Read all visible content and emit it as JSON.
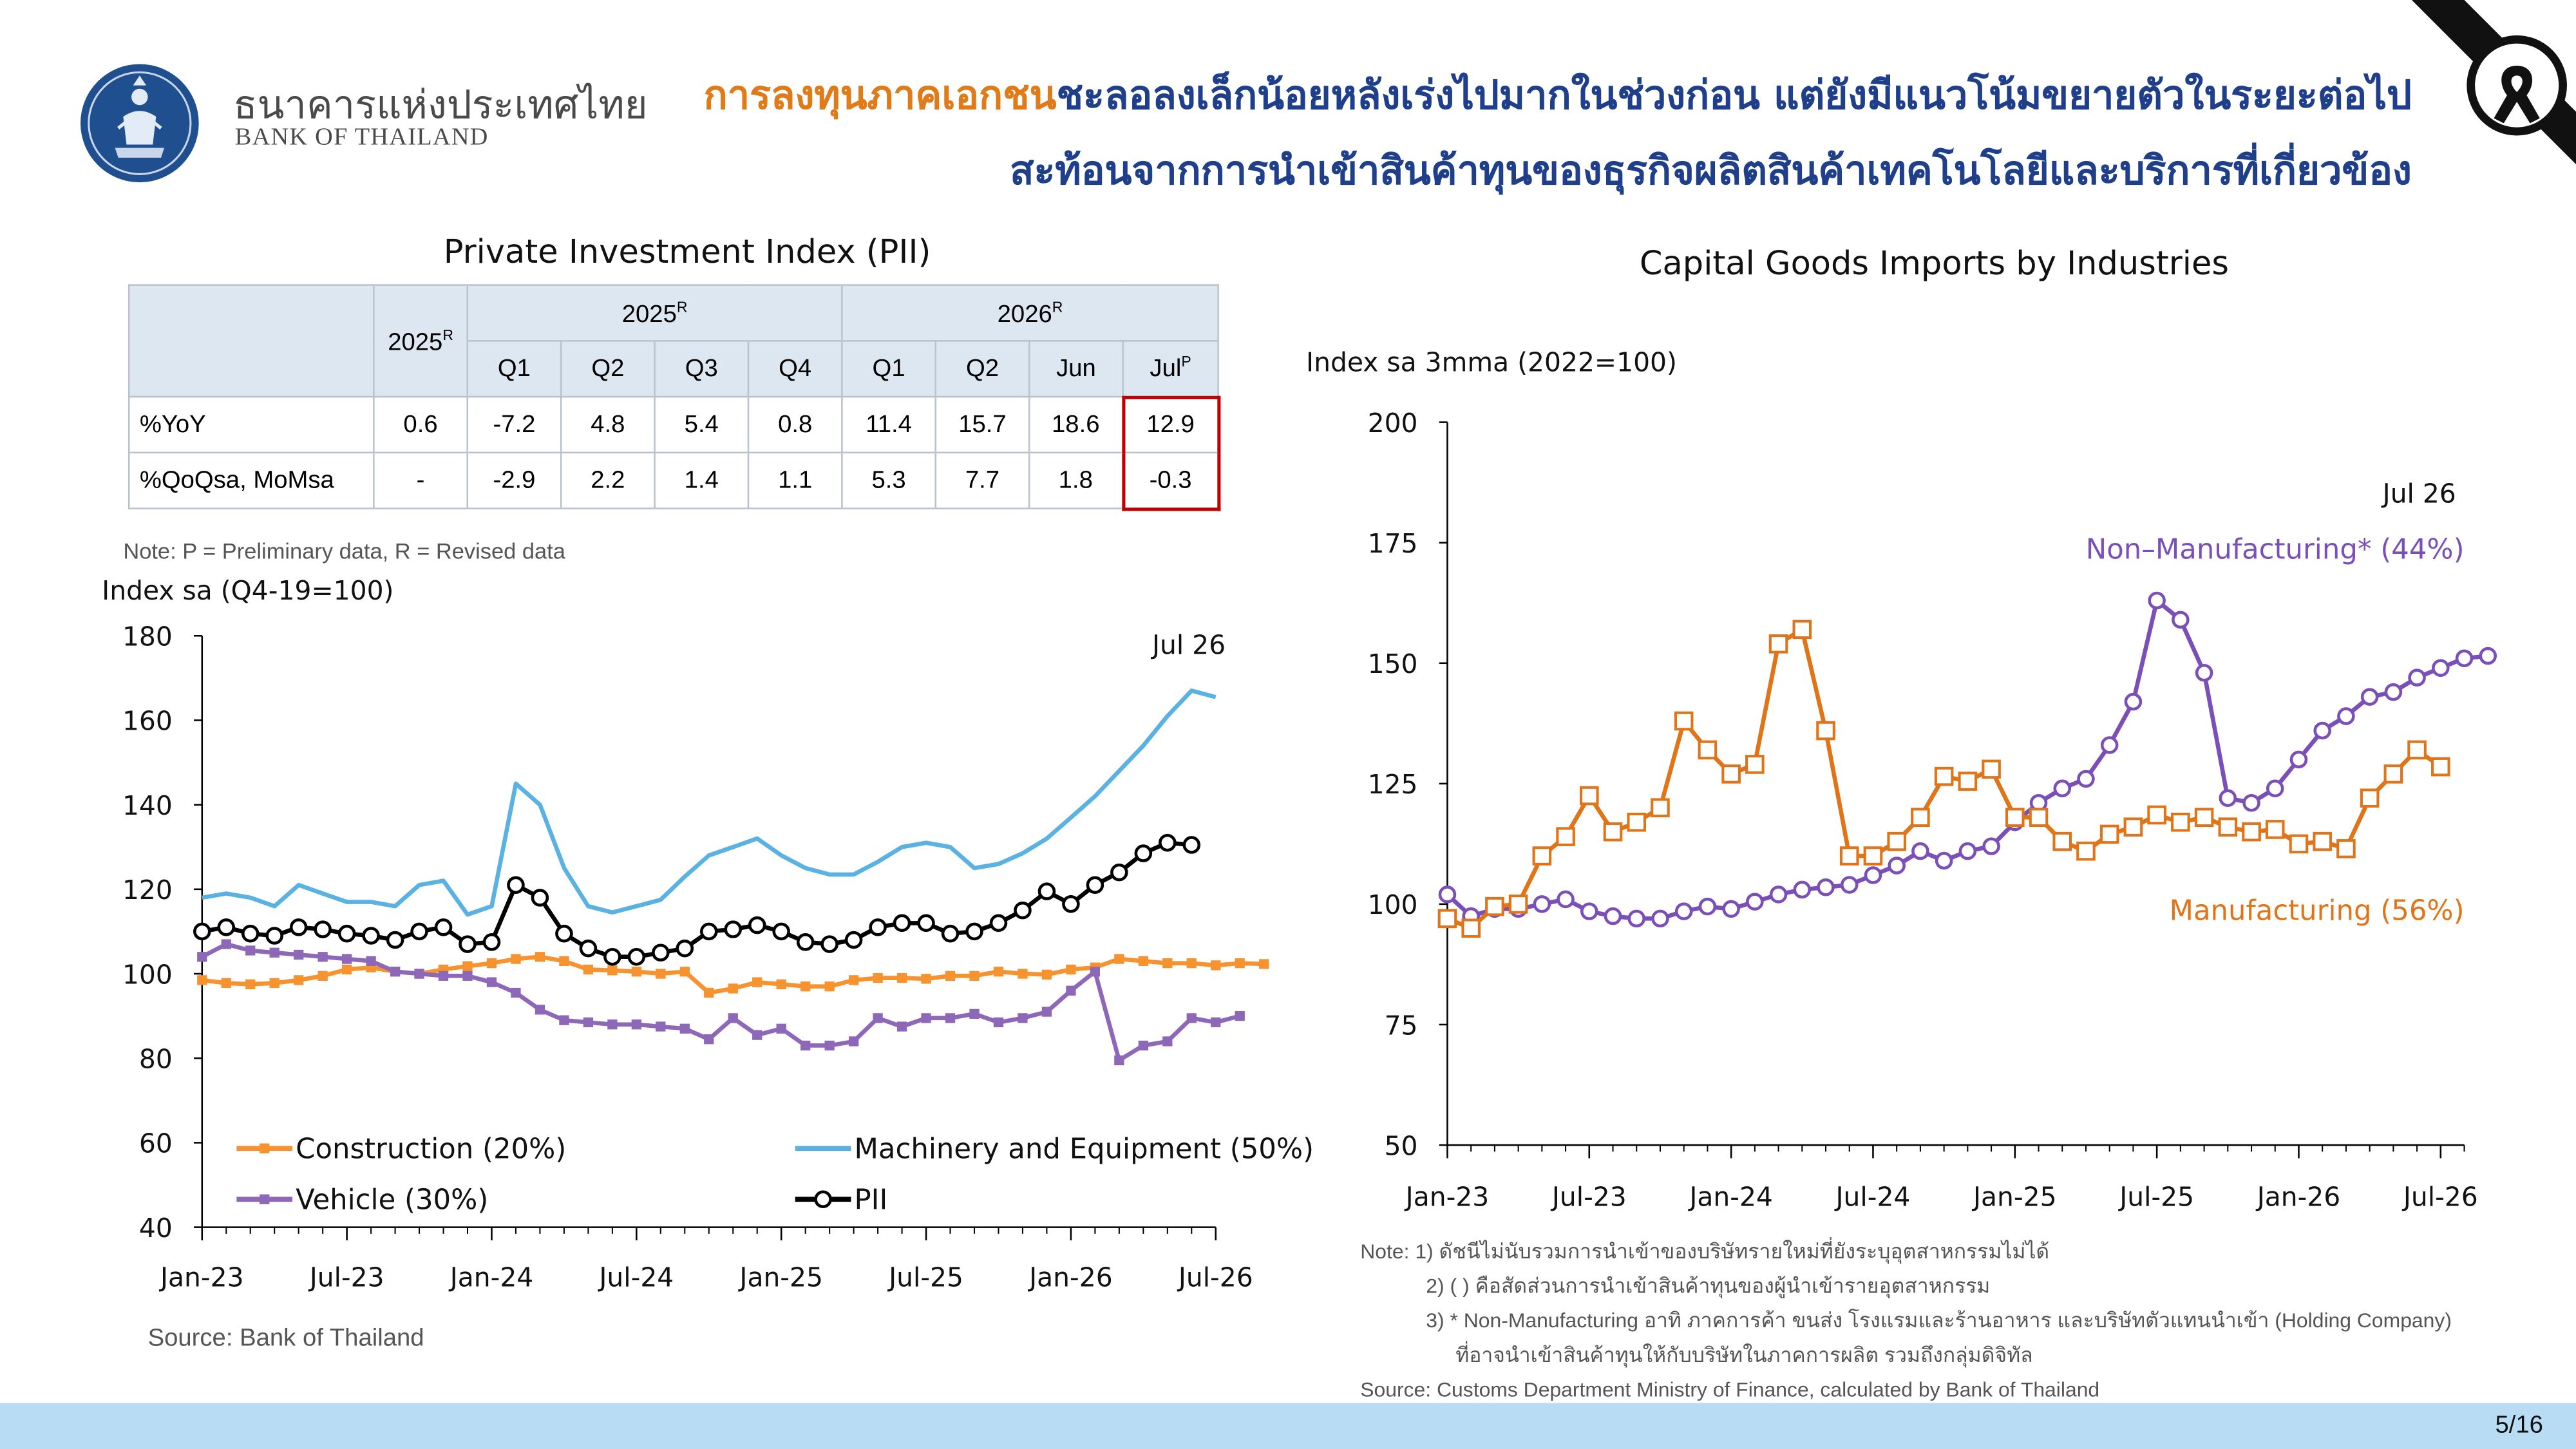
{
  "header": {
    "bank_name_th": "ธนาคารแห่งประเทศไทย",
    "bank_name_en": "BANK OF THAILAND",
    "title_line1_highlight": "การลงทุนภาคเอกชน",
    "title_line1_rest": "ชะลอลงเล็กน้อยหลังเร่งไปมากในช่วงก่อน แต่ยังมีแนวโน้มขยายตัวในระยะต่อไป",
    "title_line2": "สะท้อนจากการนำเข้าสินค้าทุนของธุรกิจผลิตสินค้าเทคโนโลยีและบริการที่เกี่ยวข้อง",
    "highlight_color": "#e07b1a",
    "title_color": "#1f3f8a"
  },
  "left": {
    "title": "Private Investment Index (PII)",
    "table": {
      "year_col": "2025",
      "group1": "2025",
      "group2": "2026",
      "sup_r": "R",
      "sup_p": "P",
      "subheaders": [
        "Q1",
        "Q2",
        "Q3",
        "Q4",
        "Q1",
        "Q2",
        "Jun",
        "Jul"
      ],
      "rows": [
        {
          "label": "%YoY",
          "values": [
            "0.6",
            "-7.2",
            "4.8",
            "5.4",
            "0.8",
            "11.4",
            "15.7",
            "18.6",
            "12.9"
          ]
        },
        {
          "label": "%QoQsa, MoMsa",
          "values": [
            "-",
            "-2.9",
            "2.2",
            "1.4",
            "1.1",
            "5.3",
            "7.7",
            "1.8",
            "-0.3"
          ]
        }
      ]
    },
    "note": "Note: P = Preliminary data, R = Revised data",
    "source": "Source: Bank of Thailand"
  },
  "right": {
    "title": "Capital Goods Imports by Industries",
    "notes": [
      "Note: 1) ดัชนีไม่นับรวมการนำเข้าของบริษัทรายใหม่ที่ยังระบุอุตสาหกรรมไม่ได้",
      "2) ( ) คือสัดส่วนการนำเข้าสินค้าทุนของผู้นำเข้ารายอุตสาหกรรม",
      "3) * Non-Manufacturing อาทิ ภาคการค้า ขนส่ง โรงแรมและร้านอาหาร และบริษัทตัวแทนนำเข้า (Holding Company)",
      "ที่อาจนำเข้าสินค้าทุนให้กับบริษัทในภาคการผลิต รวมถึงกลุ่มดิจิทัล"
    ],
    "source": "Source: Customs Department Ministry of Finance, calculated by Bank of Thailand"
  },
  "footer": {
    "page": "5/16"
  },
  "chart_data": [
    {
      "type": "line",
      "ylabel": "Index sa (Q4-19=100)",
      "ylim": [
        40,
        180
      ],
      "yticks": [
        40,
        60,
        80,
        100,
        120,
        140,
        160,
        180
      ],
      "xticks": [
        "Jan-23",
        "Jul-23",
        "Jan-24",
        "Jul-24",
        "Jan-25",
        "Jul-25",
        "Jan-26",
        "Jul-26"
      ],
      "annotation": "Jul 26",
      "grid": false,
      "legend_position": "bottom",
      "series": [
        {
          "name": "Construction (20%)",
          "color": "#f7932f",
          "marker": "square",
          "values": [
            98.5,
            97.8,
            97.5,
            97.8,
            98.5,
            99.5,
            101,
            101.5,
            100.5,
            100,
            101,
            101.8,
            102.5,
            103.5,
            104,
            103,
            101,
            100.8,
            100.5,
            100,
            100.5,
            95.5,
            96.5,
            98,
            97.5,
            97,
            97,
            98.5,
            99,
            99,
            98.8,
            99.5,
            99.5,
            100.5,
            100,
            99.8,
            101,
            101.5,
            103.5,
            103,
            102.5,
            102.5,
            102,
            102.5,
            102.3
          ]
        },
        {
          "name": "Machinery and Equipment (50%)",
          "color": "#5ab2e3",
          "marker": "none",
          "values": [
            118,
            119,
            118,
            116,
            121,
            119,
            117,
            117,
            116,
            121,
            122,
            114,
            116,
            145,
            140,
            125,
            116,
            114.5,
            116,
            117.5,
            123,
            128,
            130,
            132,
            128,
            125,
            123.5,
            123.5,
            126.5,
            130,
            131,
            130,
            125,
            126,
            128.5,
            132,
            137,
            142,
            148,
            154,
            161,
            167,
            165.5
          ]
        },
        {
          "name": "Vehicle (30%)",
          "color": "#8e68b8",
          "marker": "square",
          "values": [
            104,
            107,
            105.5,
            105,
            104.5,
            104,
            103.5,
            103,
            100.5,
            100,
            99.5,
            99.5,
            98,
            95.5,
            91.5,
            89,
            88.5,
            88,
            88,
            87.5,
            87,
            84.5,
            89.5,
            85.5,
            87,
            83,
            83,
            84,
            89.5,
            87.5,
            89.5,
            89.5,
            90.5,
            88.5,
            89.5,
            91,
            96,
            100.5,
            79.5,
            83,
            84,
            89.5,
            88.5,
            90
          ]
        },
        {
          "name": "PII",
          "color": "#000000",
          "marker": "circle",
          "values": [
            110,
            111,
            109.5,
            109,
            111,
            110.5,
            109.5,
            109,
            108,
            110,
            111,
            107,
            107.5,
            121,
            118,
            109.5,
            106,
            104,
            104,
            105,
            106,
            110,
            110.5,
            111.5,
            110,
            107.5,
            107,
            108,
            111,
            112,
            112,
            109.5,
            110,
            112,
            115,
            119.5,
            116.5,
            121,
            124,
            128.5,
            131,
            130.5
          ]
        }
      ]
    },
    {
      "type": "line",
      "ylabel": "Index sa 3mma (2022=100)",
      "ylim": [
        50,
        200
      ],
      "yticks": [
        50,
        75,
        100,
        125,
        150,
        175,
        200
      ],
      "xticks": [
        "Jan-23",
        "Jul-23",
        "Jan-24",
        "Jul-24",
        "Jan-25",
        "Jul-25",
        "Jan-26",
        "Jul-26"
      ],
      "annotation": "Jul 26",
      "grid": false,
      "series": [
        {
          "name": "Non–Manufacturing* (44%)",
          "color": "#7a4fb8",
          "marker": "circle",
          "values": [
            102,
            97.5,
            99,
            99,
            100,
            101,
            98.5,
            97.5,
            97,
            97,
            98.5,
            99.5,
            99,
            100.5,
            102,
            103,
            103.5,
            104,
            106,
            108,
            111,
            109,
            111,
            112,
            117,
            121,
            124,
            126,
            133,
            142,
            163,
            159,
            148,
            122,
            121,
            124,
            130,
            136,
            139,
            143,
            144,
            147,
            149,
            151,
            151.5
          ]
        },
        {
          "name": "Manufacturing (56%)",
          "color": "#e07418",
          "marker": "square",
          "values": [
            97,
            95,
            99.5,
            100,
            110,
            114,
            122.5,
            115,
            117,
            120,
            138,
            132,
            127,
            129,
            154,
            157,
            136,
            110,
            110,
            113,
            118,
            126.5,
            125.5,
            128,
            118,
            118,
            113,
            111,
            114.5,
            116,
            118.5,
            117,
            118,
            116,
            115,
            115.5,
            112.5,
            113,
            111.5,
            122,
            127,
            132,
            128.5
          ]
        }
      ]
    }
  ]
}
